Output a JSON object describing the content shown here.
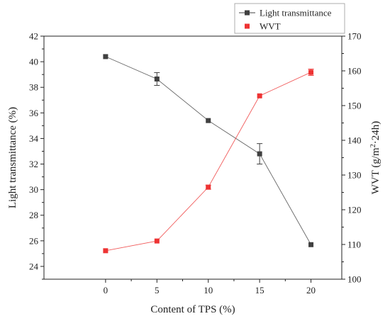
{
  "chart_data": {
    "type": "line",
    "xlabel": "Content of TPS (%)",
    "x": [
      0,
      5,
      10,
      15,
      20
    ],
    "xticks": [
      0,
      5,
      10,
      15,
      20
    ],
    "xlim": [
      -6,
      23
    ],
    "y_left": {
      "label": "Light transmittance (%)",
      "lim": [
        23,
        42
      ],
      "ticks": [
        24,
        26,
        28,
        30,
        32,
        34,
        36,
        38,
        40,
        42
      ]
    },
    "y_right": {
      "label_parts": [
        "WVT (g/m",
        "2",
        "·24h)"
      ],
      "lim": [
        100,
        170
      ],
      "ticks": [
        100,
        110,
        120,
        130,
        140,
        150,
        160,
        170
      ]
    },
    "series": [
      {
        "name": "Light transmittance",
        "axis": "left",
        "color": "#404040",
        "marker": "square",
        "line": true,
        "values": [
          40.4,
          38.65,
          35.4,
          32.8,
          25.7
        ],
        "errors": [
          0.0,
          0.5,
          0.0,
          0.8,
          0.0
        ]
      },
      {
        "name": "WVT",
        "axis": "right",
        "color": "#ee3333",
        "marker": "square",
        "line": true,
        "values": [
          108.2,
          111.0,
          126.5,
          152.8,
          159.6
        ],
        "errors": [
          0.0,
          0.0,
          0.6,
          0.0,
          0.9
        ]
      }
    ],
    "legend_position": "top-right"
  }
}
